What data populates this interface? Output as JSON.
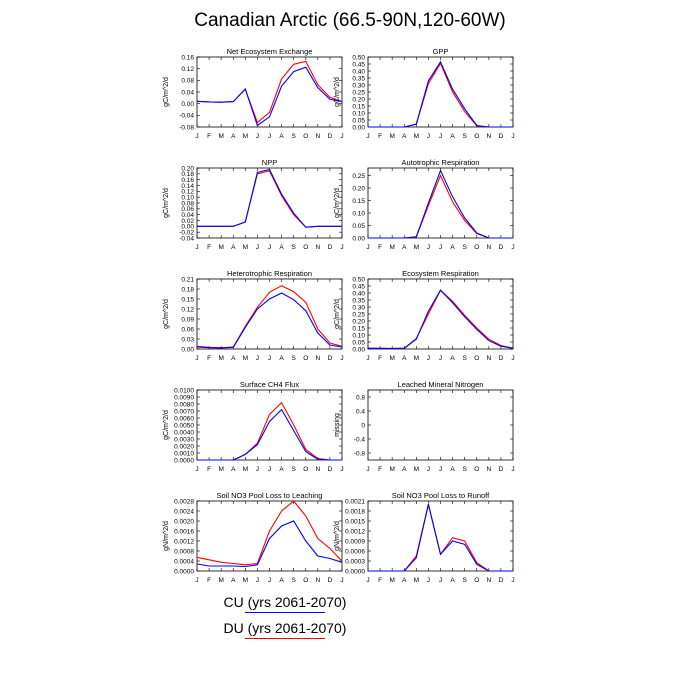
{
  "title": "Canadian Arctic (66.5-90N,120-60W)",
  "months": [
    "J",
    "F",
    "M",
    "A",
    "M",
    "J",
    "J",
    "A",
    "S",
    "O",
    "N",
    "D",
    "J"
  ],
  "legend": [
    {
      "label": "CU (yrs 2061-2070)",
      "color": "#0000ff"
    },
    {
      "label": "DU (yrs 2061-2070)",
      "color": "#ff0000"
    }
  ],
  "chart_data": [
    {
      "type": "line",
      "title": "Net Ecosystem Exchange",
      "ylabel": "gC/m^2/d",
      "ylim": [
        -0.08,
        0.16
      ],
      "yticks": [
        "-0.08",
        "-0.04",
        "0.00",
        "0.04",
        "0.08",
        "0.12",
        "0.16"
      ],
      "series": [
        {
          "name": "CU (yrs 2061-2070)",
          "values": [
            0.008,
            0.006,
            0.005,
            0.007,
            0.05,
            -0.075,
            -0.045,
            0.06,
            0.11,
            0.125,
            0.055,
            0.015,
            0.007
          ]
        },
        {
          "name": "DU (yrs 2061-2070)",
          "values": [
            0.008,
            0.006,
            0.005,
            0.007,
            0.05,
            -0.065,
            -0.03,
            0.085,
            0.135,
            0.145,
            0.065,
            0.022,
            0.007
          ]
        }
      ]
    },
    {
      "type": "line",
      "title": "GPP",
      "ylabel": "gC/m^2/d",
      "ylim": [
        0,
        0.5
      ],
      "yticks": [
        "0.00",
        "0.05",
        "0.10",
        "0.15",
        "0.20",
        "0.25",
        "0.30",
        "0.35",
        "0.40",
        "0.45",
        "0.50"
      ],
      "series": [
        {
          "name": "CU (yrs 2061-2070)",
          "values": [
            0,
            0,
            0,
            0,
            0.02,
            0.33,
            0.465,
            0.27,
            0.13,
            0.01,
            0,
            0,
            0
          ]
        },
        {
          "name": "DU (yrs 2061-2070)",
          "values": [
            0,
            0,
            0,
            0,
            0.02,
            0.31,
            0.455,
            0.25,
            0.11,
            0.008,
            0,
            0,
            0
          ]
        }
      ]
    },
    {
      "type": "line",
      "title": "NPP",
      "ylabel": "gC/m^2/d",
      "ylim": [
        -0.04,
        0.2
      ],
      "yticks": [
        "-0.04",
        "-0.02",
        "0.00",
        "0.02",
        "0.04",
        "0.06",
        "0.08",
        "0.10",
        "0.12",
        "0.14",
        "0.16",
        "0.18",
        "0.20"
      ],
      "series": [
        {
          "name": "CU (yrs 2061-2070)",
          "values": [
            0,
            0,
            0,
            0,
            0.015,
            0.185,
            0.195,
            0.11,
            0.045,
            -0.003,
            0,
            0,
            0
          ]
        },
        {
          "name": "DU (yrs 2061-2070)",
          "values": [
            0,
            0,
            0,
            0,
            0.015,
            0.18,
            0.19,
            0.105,
            0.04,
            -0.003,
            0,
            0,
            0
          ]
        }
      ]
    },
    {
      "type": "line",
      "title": "Autotrophic Respiration",
      "ylabel": "gC/m^2/d",
      "ylim": [
        0,
        0.28
      ],
      "yticks": [
        "0.00",
        "0.05",
        "0.10",
        "0.15",
        "0.20",
        "0.25"
      ],
      "series": [
        {
          "name": "CU (yrs 2061-2070)",
          "values": [
            0,
            0,
            0,
            0,
            0.005,
            0.14,
            0.27,
            0.165,
            0.08,
            0.02,
            0,
            0,
            0
          ]
        },
        {
          "name": "DU (yrs 2061-2070)",
          "values": [
            0,
            0,
            0,
            0,
            0.005,
            0.13,
            0.25,
            0.145,
            0.07,
            0.018,
            0,
            0,
            0
          ]
        }
      ]
    },
    {
      "type": "line",
      "title": "Heterotrophic Respiration",
      "ylabel": "gC/m^2/d",
      "ylim": [
        0,
        0.21
      ],
      "yticks": [
        "0.00",
        "0.03",
        "0.06",
        "0.09",
        "0.12",
        "0.15",
        "0.18",
        "0.21"
      ],
      "series": [
        {
          "name": "CU (yrs 2061-2070)",
          "values": [
            0.006,
            0.004,
            0.003,
            0.005,
            0.065,
            0.12,
            0.15,
            0.168,
            0.148,
            0.115,
            0.048,
            0.012,
            0.006
          ]
        },
        {
          "name": "DU (yrs 2061-2070)",
          "values": [
            0.008,
            0.005,
            0.004,
            0.006,
            0.068,
            0.125,
            0.17,
            0.19,
            0.172,
            0.14,
            0.06,
            0.018,
            0.008
          ]
        }
      ]
    },
    {
      "type": "line",
      "title": "Ecosystem Respiration",
      "ylabel": "gC/m^2/d",
      "ylim": [
        0,
        0.5
      ],
      "yticks": [
        "0.00",
        "0.05",
        "0.10",
        "0.15",
        "0.20",
        "0.25",
        "0.30",
        "0.35",
        "0.40",
        "0.45",
        "0.50"
      ],
      "series": [
        {
          "name": "CU (yrs 2061-2070)",
          "values": [
            0.005,
            0.004,
            0.003,
            0.005,
            0.07,
            0.27,
            0.42,
            0.33,
            0.23,
            0.14,
            0.06,
            0.02,
            0.005
          ]
        },
        {
          "name": "DU (yrs 2061-2070)",
          "values": [
            0.006,
            0.005,
            0.004,
            0.006,
            0.075,
            0.25,
            0.42,
            0.34,
            0.24,
            0.15,
            0.07,
            0.025,
            0.006
          ]
        }
      ]
    },
    {
      "type": "line",
      "title": "Surface CH4 Flux",
      "ylabel": "gC/m^2/d",
      "ylim": [
        0,
        0.01
      ],
      "yticks": [
        "0.0000",
        "0.0010",
        "0.0020",
        "0.0030",
        "0.0040",
        "0.0050",
        "0.0060",
        "0.0070",
        "0.0080",
        "0.0090",
        "0.0100"
      ],
      "series": [
        {
          "name": "CU (yrs 2061-2070)",
          "values": [
            0,
            0,
            0,
            0,
            0.0008,
            0.0022,
            0.0055,
            0.0072,
            0.0042,
            0.0012,
            0.0001,
            0,
            0
          ]
        },
        {
          "name": "DU (yrs 2061-2070)",
          "values": [
            0,
            0,
            0,
            0,
            0.0008,
            0.0024,
            0.0065,
            0.0082,
            0.005,
            0.0015,
            0.0002,
            0,
            0
          ]
        }
      ]
    },
    {
      "type": "line",
      "title": "Leached Mineral Nitrogen",
      "ylabel": "missing",
      "ylim": [
        -1,
        1
      ],
      "yticks": [
        "-0.8",
        "-0.4",
        "0",
        "0.4",
        "0.8"
      ],
      "series": []
    },
    {
      "type": "line",
      "title": "Soil NO3 Pool Loss to Leaching",
      "ylabel": "gN/m^2/d",
      "ylim": [
        0,
        0.0028
      ],
      "yticks": [
        "0.0000",
        "0.0004",
        "0.0008",
        "0.0012",
        "0.0016",
        "0.0020",
        "0.0024",
        "0.0028"
      ],
      "series": [
        {
          "name": "CU (yrs 2061-2070)",
          "values": [
            0.00028,
            0.0002,
            0.0002,
            0.0002,
            0.00018,
            0.00025,
            0.0013,
            0.0018,
            0.002,
            0.0012,
            0.0006,
            0.0005,
            0.00035
          ]
        },
        {
          "name": "DU (yrs 2061-2070)",
          "values": [
            0.00055,
            0.00045,
            0.00035,
            0.0003,
            0.00025,
            0.0003,
            0.0016,
            0.0024,
            0.0028,
            0.0022,
            0.0013,
            0.0009,
            0.0004
          ]
        }
      ]
    },
    {
      "type": "line",
      "title": "Soil NO3 Pool Loss to Runoff",
      "ylabel": "gN/m^2/d",
      "ylim": [
        0,
        0.0021
      ],
      "yticks": [
        "0.0000",
        "0.0003",
        "0.0006",
        "0.0009",
        "0.0012",
        "0.0015",
        "0.0018",
        "0.0021"
      ],
      "series": [
        {
          "name": "CU (yrs 2061-2070)",
          "values": [
            0,
            0,
            0,
            0,
            0.0004,
            0.002,
            0.0005,
            0.0009,
            0.0008,
            0.0002,
            0,
            0,
            0
          ]
        },
        {
          "name": "DU (yrs 2061-2070)",
          "values": [
            0,
            0,
            0,
            0,
            0.00045,
            0.002,
            0.0005,
            0.001,
            0.0009,
            0.00025,
            0,
            0,
            0
          ]
        }
      ]
    }
  ]
}
